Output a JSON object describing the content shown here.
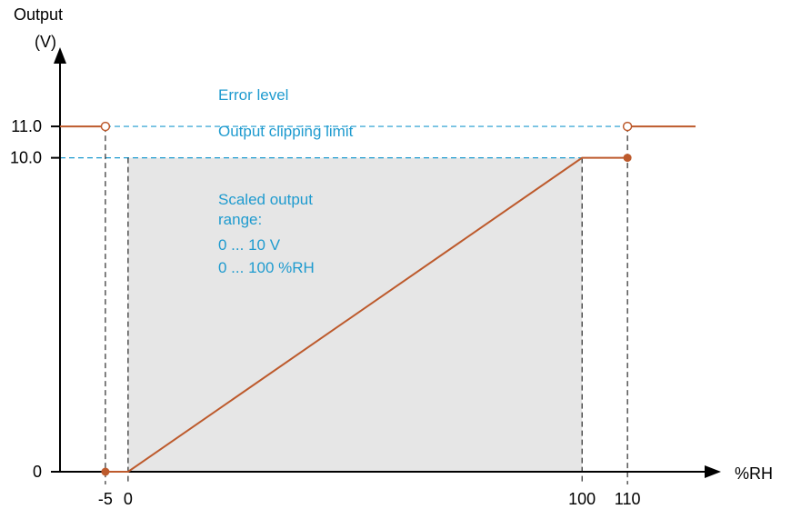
{
  "chart_data": {
    "type": "line",
    "ylabel_line1": "Output",
    "ylabel_line2": "(V)",
    "xlabel": "%RH",
    "x_ticks": [
      {
        "value": -5,
        "label": "-5"
      },
      {
        "value": 0,
        "label": "0"
      },
      {
        "value": 100,
        "label": "100"
      },
      {
        "value": 110,
        "label": "110"
      }
    ],
    "y_ticks": [
      {
        "value": 0,
        "label": "0"
      },
      {
        "value": 10,
        "label": "10.0"
      },
      {
        "value": 11,
        "label": "11.0"
      }
    ],
    "xlim": [
      -15,
      127
    ],
    "ylim": [
      0,
      13
    ],
    "scaled_range": {
      "x": [
        0,
        100
      ],
      "y": [
        0,
        10
      ]
    },
    "segments": [
      {
        "x": [
          -15,
          -5
        ],
        "y": [
          11,
          11
        ],
        "open_end": "-5"
      },
      {
        "x": [
          -5,
          0,
          100,
          110
        ],
        "y": [
          0,
          0,
          10,
          10
        ],
        "closed_points": "-5 and 110"
      },
      {
        "x": [
          110,
          125
        ],
        "y": [
          11,
          11
        ],
        "open_start": "110"
      }
    ],
    "reference_lines": [
      {
        "y": 11,
        "label": "Error level"
      },
      {
        "y": 10,
        "label": "Output clipping limit"
      }
    ],
    "annotation_lines": [
      "Scaled output",
      "range:",
      "0 ... 10 V",
      "0 ... 100 %RH"
    ],
    "colors": {
      "line": "#bd5a2c",
      "annotation": "#1f9bcf",
      "fill": "#e6e6e6",
      "axis": "#000000"
    }
  }
}
